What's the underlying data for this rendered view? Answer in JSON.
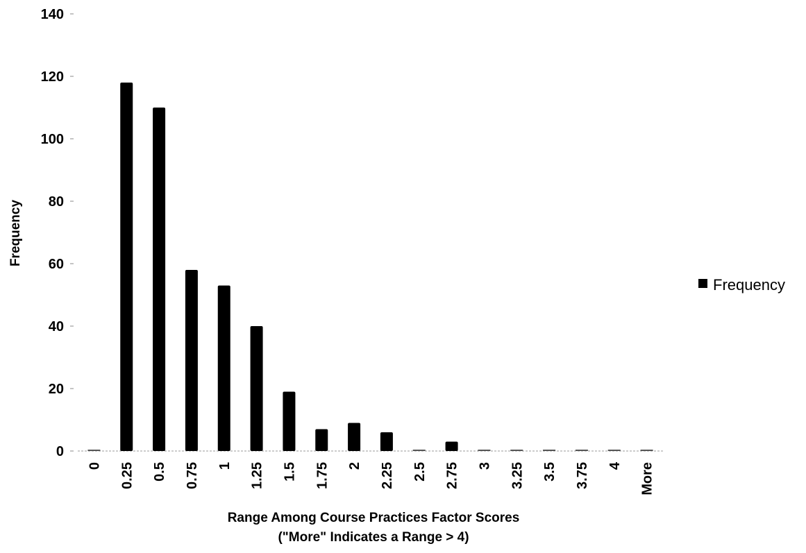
{
  "chart_data": {
    "type": "bar",
    "categories": [
      "0",
      "0.25",
      "0.5",
      "0.75",
      "1",
      "1.25",
      "1.5",
      "1.75",
      "2",
      "2.25",
      "2.5",
      "2.75",
      "3",
      "3.25",
      "3.5",
      "3.75",
      "4",
      "More"
    ],
    "series": [
      {
        "name": "Frequency",
        "values": [
          0,
          118,
          110,
          58,
          53,
          40,
          19,
          7,
          9,
          6,
          0,
          3,
          0,
          0,
          0,
          0,
          0,
          0
        ]
      }
    ],
    "title": "",
    "ylabel": "Frequency",
    "xlabel_lines": [
      "Range Among Course Practices Factor Scores",
      "(\"More\" Indicates a Range > 4)"
    ],
    "ylim": [
      0,
      140
    ],
    "yticks": [
      "0",
      "20",
      "40",
      "60",
      "80",
      "100",
      "120",
      "140"
    ],
    "grid": false,
    "legend": {
      "position": "right",
      "entries": [
        "Frequency"
      ]
    },
    "bar_color": "#000000"
  }
}
